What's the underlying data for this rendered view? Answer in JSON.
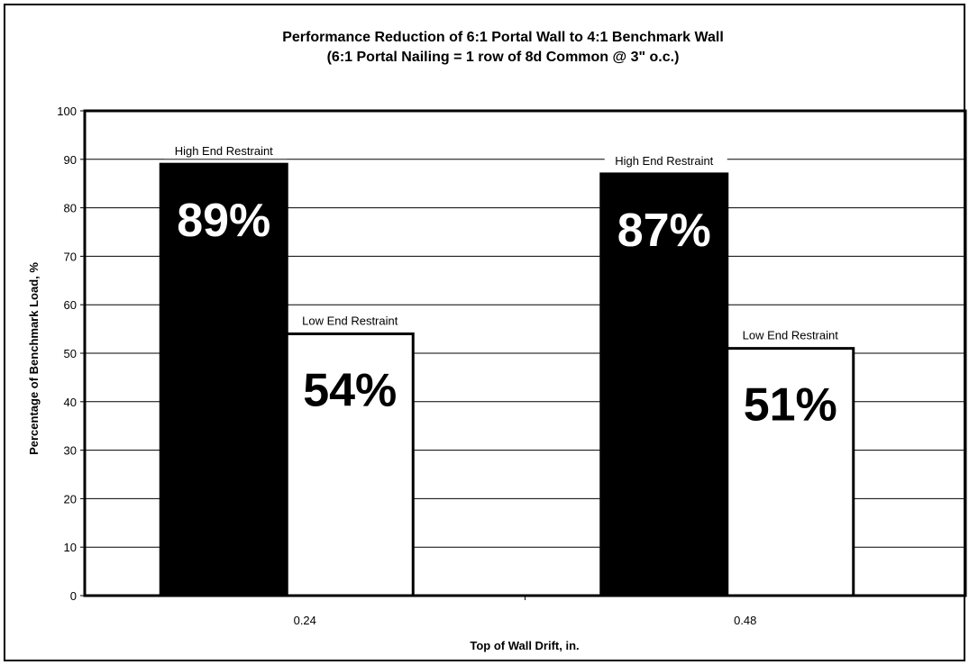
{
  "chart_data": {
    "type": "bar",
    "title": "Performance Reduction of 6:1 Portal Wall to 4:1 Benchmark Wall",
    "subtitle": "(6:1 Portal Nailing = 1 row of 8d Common @ 3\" o.c.)",
    "xlabel": "Top of Wall Drift, in.",
    "ylabel": "Percentage of Benchmark Load, %",
    "categories": [
      "0.24",
      "0.48"
    ],
    "ylim": [
      0,
      100
    ],
    "yticks": [
      0,
      10,
      20,
      30,
      40,
      50,
      60,
      70,
      80,
      90,
      100
    ],
    "grid": true,
    "series": [
      {
        "name": "High End Restraint",
        "values": [
          89,
          87
        ],
        "data_labels": [
          "89%",
          "87%"
        ],
        "fill": "#000000",
        "label_color": "#ffffff"
      },
      {
        "name": "Low End Restraint",
        "values": [
          54,
          51
        ],
        "data_labels": [
          "54%",
          "51%"
        ],
        "fill": "#ffffff",
        "label_color": "#000000"
      }
    ]
  }
}
